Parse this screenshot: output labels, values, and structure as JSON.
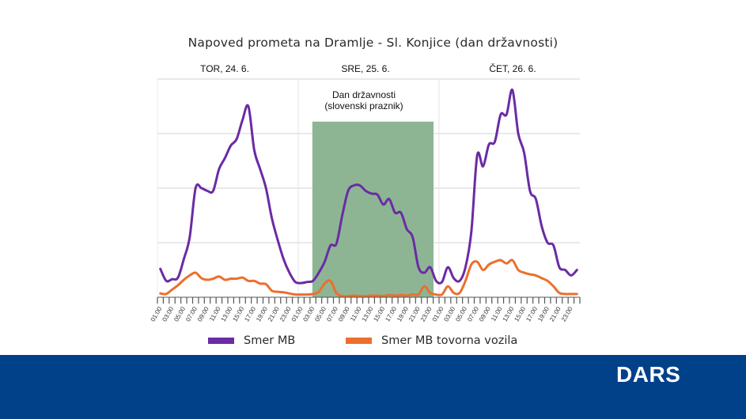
{
  "footer": {
    "logo": "DARS",
    "background_color": "#004189"
  },
  "legend": [
    {
      "label": "Smer MB",
      "color": "#6a2ba4"
    },
    {
      "label": "Smer MB tovorna vozila",
      "color": "#ec6f2d"
    }
  ],
  "chart_data": {
    "type": "line",
    "title": "Napoved prometa na Dramlje - Sl. Konjice (dan državnosti)",
    "xlabel": "",
    "ylabel": "",
    "y_units": "relative (gridline units, no y-axis labels shown)",
    "ylim": [
      0,
      4
    ],
    "grid": true,
    "legend_position": "bottom",
    "days": [
      {
        "label": "TOR, 24. 6."
      },
      {
        "label": "SRE, 25. 6."
      },
      {
        "label": "ČET, 26. 6."
      }
    ],
    "highlight": {
      "label_line1": "Dan državnosti",
      "label_line2": "(slovenski praznik)",
      "color": "#8db594",
      "start_hour": 27,
      "end_hour": 48,
      "height": 3.22
    },
    "x_tick_labels": [
      "01:00",
      "03:00",
      "05:00",
      "07:00",
      "09:00",
      "11:00",
      "13:00",
      "15:00",
      "17:00",
      "19:00",
      "21:00",
      "23:00",
      "01:00",
      "03:00",
      "05:00",
      "07:00",
      "09:00",
      "11:00",
      "13:00",
      "15:00",
      "17:00",
      "19:00",
      "21:00",
      "23:00",
      "01:00",
      "03:00",
      "05:00",
      "07:00",
      "09:00",
      "11:00",
      "13:00",
      "15:00",
      "17:00",
      "19:00",
      "21:00",
      "23:00"
    ],
    "x": [
      1,
      2,
      3,
      4,
      5,
      6,
      7,
      8,
      9,
      10,
      11,
      12,
      13,
      14,
      15,
      16,
      17,
      18,
      19,
      20,
      21,
      22,
      23,
      24,
      25,
      26,
      27,
      28,
      29,
      30,
      31,
      32,
      33,
      34,
      35,
      36,
      37,
      38,
      39,
      40,
      41,
      42,
      43,
      44,
      45,
      46,
      47,
      48,
      49,
      50,
      51,
      52,
      53,
      54,
      55,
      56,
      57,
      58,
      59,
      60,
      61,
      62,
      63,
      64,
      65,
      66,
      67,
      68,
      69,
      70,
      71,
      72
    ],
    "series": [
      {
        "name": "Smer MB",
        "color": "#6a2ba4",
        "values": [
          0.52,
          0.3,
          0.33,
          0.36,
          0.7,
          1.1,
          2.0,
          2.0,
          1.95,
          1.95,
          2.35,
          2.55,
          2.78,
          2.9,
          3.25,
          3.5,
          2.7,
          2.35,
          2.0,
          1.45,
          1.05,
          0.7,
          0.45,
          0.28,
          0.26,
          0.28,
          0.3,
          0.45,
          0.65,
          0.95,
          0.98,
          1.5,
          1.95,
          2.05,
          2.05,
          1.95,
          1.9,
          1.88,
          1.7,
          1.8,
          1.55,
          1.55,
          1.25,
          1.1,
          0.55,
          0.45,
          0.55,
          0.3,
          0.28,
          0.55,
          0.35,
          0.3,
          0.55,
          1.2,
          2.6,
          2.4,
          2.8,
          2.85,
          3.35,
          3.35,
          3.8,
          3.0,
          2.65,
          1.95,
          1.8,
          1.3,
          1.0,
          0.95,
          0.55,
          0.5,
          0.4,
          0.5
        ]
      },
      {
        "name": "Smer MB tovorna vozila",
        "color": "#ec6f2d",
        "values": [
          0.07,
          0.06,
          0.14,
          0.22,
          0.32,
          0.4,
          0.45,
          0.35,
          0.32,
          0.34,
          0.38,
          0.32,
          0.34,
          0.34,
          0.36,
          0.3,
          0.3,
          0.25,
          0.24,
          0.12,
          0.1,
          0.09,
          0.07,
          0.05,
          0.05,
          0.05,
          0.06,
          0.1,
          0.25,
          0.3,
          0.08,
          0.02,
          0.02,
          0.03,
          0.02,
          0.02,
          0.03,
          0.03,
          0.02,
          0.04,
          0.03,
          0.04,
          0.03,
          0.05,
          0.05,
          0.2,
          0.08,
          0.05,
          0.05,
          0.2,
          0.08,
          0.08,
          0.3,
          0.6,
          0.65,
          0.5,
          0.6,
          0.65,
          0.68,
          0.62,
          0.68,
          0.5,
          0.45,
          0.42,
          0.4,
          0.35,
          0.3,
          0.2,
          0.08,
          0.06,
          0.06,
          0.06
        ]
      }
    ]
  }
}
